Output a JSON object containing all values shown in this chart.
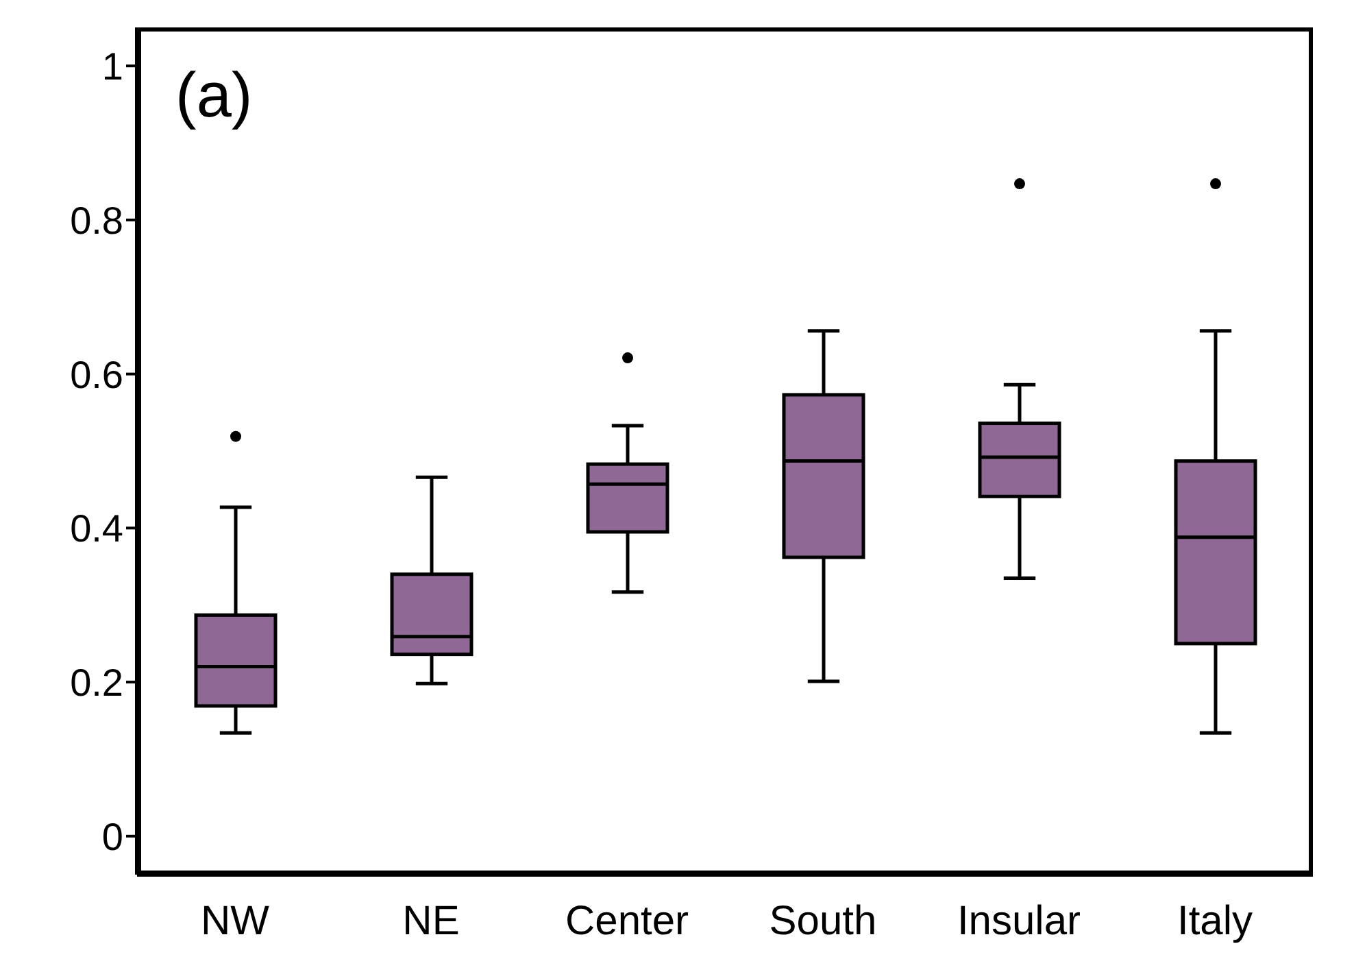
{
  "chart_data": {
    "type": "box",
    "annotations": [
      "(a)"
    ],
    "categories": [
      "NW",
      "NE",
      "Center",
      "South",
      "Insular",
      "Italy"
    ],
    "color": "#8f6896",
    "boxes": [
      {
        "low": 0.134,
        "q1": 0.169,
        "median": 0.22,
        "q3": 0.287,
        "high": 0.427,
        "outliers": [
          0.519
        ]
      },
      {
        "low": 0.198,
        "q1": 0.236,
        "median": 0.259,
        "q3": 0.34,
        "high": 0.466
      },
      {
        "low": 0.317,
        "q1": 0.395,
        "median": 0.457,
        "q3": 0.483,
        "high": 0.533,
        "outliers": [
          0.621
        ]
      },
      {
        "low": 0.201,
        "q1": 0.362,
        "median": 0.487,
        "q3": 0.573,
        "high": 0.656
      },
      {
        "low": 0.335,
        "q1": 0.441,
        "median": 0.492,
        "q3": 0.536,
        "high": 0.586,
        "outliers": [
          0.847
        ]
      },
      {
        "low": 0.134,
        "q1": 0.25,
        "median": 0.388,
        "q3": 0.487,
        "high": 0.656,
        "outliers": [
          0.847
        ]
      }
    ],
    "ylim": [
      -0.05,
      1.05
    ],
    "yticks": [
      0,
      0.2,
      0.4,
      0.6,
      0.8,
      1
    ]
  }
}
